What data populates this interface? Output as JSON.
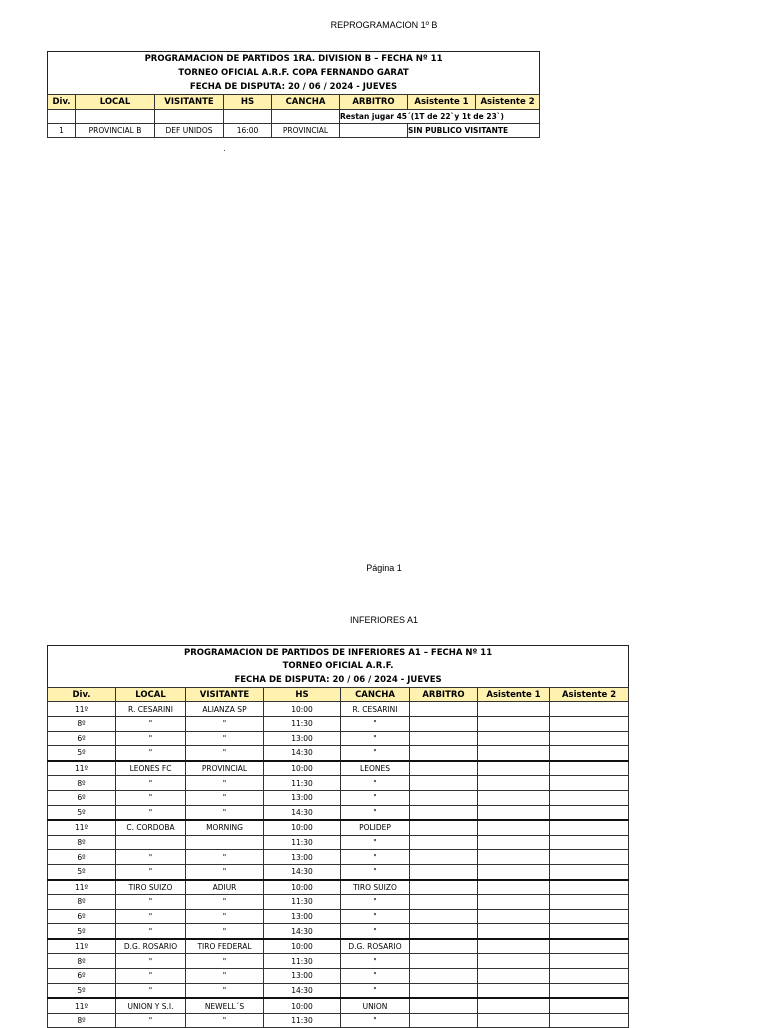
{
  "page1": {
    "caption": "REPROGRAMACION 1º B",
    "footer": "Página 1"
  },
  "table1": {
    "titles": [
      "PROGRAMACION DE PARTIDOS 1RA. DIVISION B – FECHA Nº 11",
      "TORNEO OFICIAL A.R.F. COPA FERNANDO GARAT",
      "FECHA DE DISPUTA: 20 / 06 / 2024 - JUEVES"
    ],
    "headers": [
      "Div.",
      "LOCAL",
      "VISITANTE",
      "HS",
      "CANCHA",
      "ARBITRO",
      "Asistente 1",
      "Asistente 2"
    ],
    "note": "Restan jugar 45´(1T de 22`y 1t de 23`)",
    "row": {
      "div": "1",
      "local": "PROVINCIAL B",
      "visitante": "DEF UNIDOS",
      "hs": "16:00",
      "cancha": "PROVINCIAL",
      "arbitro": "",
      "obs": "SIN PUBLICO VISITANTE"
    }
  },
  "page2": {
    "caption": "INFERIORES A1"
  },
  "table2": {
    "titles": [
      "PROGRAMACION DE PARTIDOS DE INFERIORES A1 – FECHA Nº 11",
      "TORNEO OFICIAL A.R.F.",
      "FECHA DE DISPUTA:  20 / 06 / 2024  - JUEVES"
    ],
    "headers": [
      "Div.",
      "LOCAL",
      "VISITANTE",
      "HS",
      "CANCHA",
      "ARBITRO",
      "Asistente 1",
      "Asistente 2"
    ],
    "rows": [
      [
        "11º",
        "R. CESARINI",
        "ALIANZA SP",
        "10:00",
        "R. CESARINI"
      ],
      [
        "8º",
        "\"",
        "\"",
        "11:30",
        "\""
      ],
      [
        "6º",
        "\"",
        "\"",
        "13:00",
        "\""
      ],
      [
        "5º",
        "\"",
        "\"",
        "14:30",
        "\""
      ],
      [
        "11º",
        "LEONES FC",
        "PROVINCIAL",
        "10:00",
        "LEONES"
      ],
      [
        "8º",
        "\"",
        "\"",
        "11:30",
        "\""
      ],
      [
        "6º",
        "\"",
        "\"",
        "13:00",
        "\""
      ],
      [
        "5º",
        "\"",
        "\"",
        "14:30",
        "\""
      ],
      [
        "11º",
        "C. CORDOBA",
        "MORNING",
        "10:00",
        "POLIDEP"
      ],
      [
        "8º",
        "",
        "",
        "11:30",
        "\""
      ],
      [
        "6º",
        "\"",
        "\"",
        "13:00",
        "\""
      ],
      [
        "5º",
        "\"",
        "\"",
        "14:30",
        "\""
      ],
      [
        "11º",
        "TIRO SUIZO",
        "ADIUR",
        "10:00",
        "TIRO SUIZO"
      ],
      [
        "8º",
        "\"",
        "\"",
        "11:30",
        "\""
      ],
      [
        "6º",
        "\"",
        "\"",
        "13:00",
        "\""
      ],
      [
        "5º",
        "\"",
        "\"",
        "14:30",
        "\""
      ],
      [
        "11º",
        "D.G. ROSARIO",
        "TIRO FEDERAL",
        "10:00",
        "D.G. ROSARIO"
      ],
      [
        "8º",
        "\"",
        "\"",
        "11:30",
        "\""
      ],
      [
        "6º",
        "\"",
        "\"",
        "13:00",
        "\""
      ],
      [
        "5º",
        "\"",
        "\"",
        "14:30",
        "\""
      ],
      [
        "11º",
        "UNION Y S.I.",
        "NEWELL´S",
        "10:00",
        "UNION"
      ],
      [
        "8º",
        "\"",
        "\"",
        "11:30",
        "\""
      ]
    ]
  }
}
